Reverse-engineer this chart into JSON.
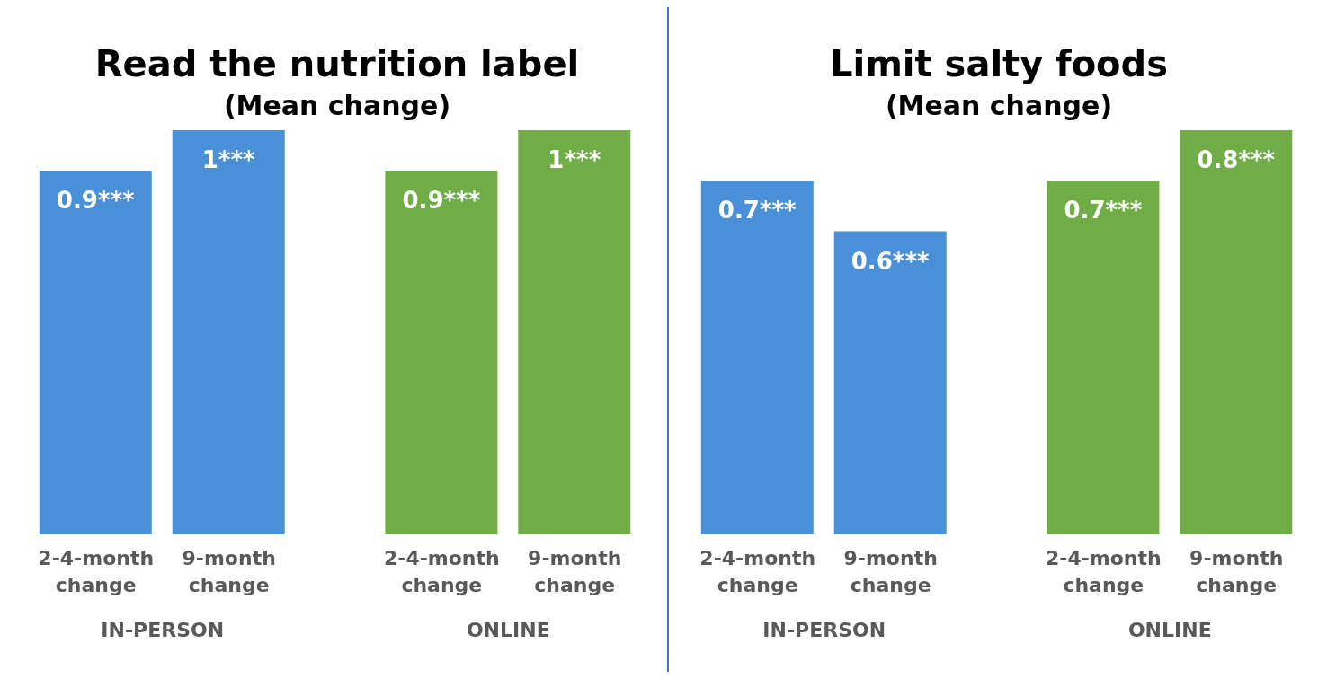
{
  "chart_data": [
    {
      "type": "bar",
      "title": "Read the nutrition label",
      "subtitle": "(Mean change)",
      "categories": [
        "2-4-month change",
        "9-month change",
        "2-4-month change",
        "9-month change"
      ],
      "values": [
        0.9,
        1,
        0.9,
        1
      ],
      "colors": [
        "#4a90d9",
        "#4a90d9",
        "#70ad47",
        "#70ad47"
      ],
      "value_labels": [
        "0.9***",
        "1***",
        "0.9***",
        "1***"
      ],
      "annotations": [
        "IN-PERSON",
        "ONLINE"
      ]
    },
    {
      "type": "bar",
      "title": "Limit salty foods",
      "subtitle": "(Mean change)",
      "categories": [
        "2-4-month change",
        "9-month change",
        "2-4-month change",
        "9-month change"
      ],
      "values": [
        0.7,
        0.6,
        0.7,
        0.8
      ],
      "colors": [
        "#4a90d9",
        "#4a90d9",
        "#70ad47",
        "#70ad47"
      ],
      "value_labels": [
        "0.7***",
        "0.6***",
        "0.7***",
        "0.8***"
      ],
      "annotations": [
        "IN-PERSON",
        "ONLINE"
      ]
    }
  ]
}
